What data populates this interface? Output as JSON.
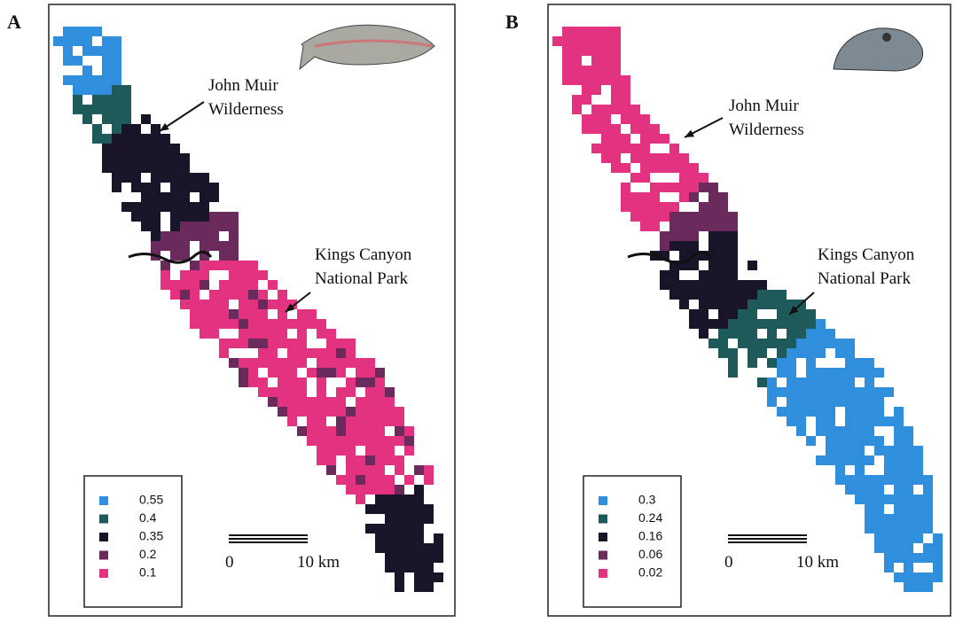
{
  "panels": [
    {
      "label": "A",
      "annotations": [
        {
          "lines": [
            "John Muir",
            "Wilderness"
          ]
        },
        {
          "lines": [
            "Kings Canyon",
            "National Park"
          ]
        }
      ],
      "legend": [
        {
          "label": "0.55",
          "color": "#2f8fdc"
        },
        {
          "label": "0.4",
          "color": "#1f5a5a"
        },
        {
          "label": "0.35",
          "color": "#1a1428"
        },
        {
          "label": "0.2",
          "color": "#6a2a5c"
        },
        {
          "label": "0.1",
          "color": "#e3327f"
        }
      ],
      "scale": {
        "start": "0",
        "end": "10 km"
      }
    },
    {
      "label": "B",
      "annotations": [
        {
          "lines": [
            "John Muir",
            "Wilderness"
          ]
        },
        {
          "lines": [
            "Kings Canyon",
            "National Park"
          ]
        }
      ],
      "legend": [
        {
          "label": "0.3",
          "color": "#2f8fdc"
        },
        {
          "label": "0.24",
          "color": "#1f5a5a"
        },
        {
          "label": "0.16",
          "color": "#1a1428"
        },
        {
          "label": "0.06",
          "color": "#6a2a5c"
        },
        {
          "label": "0.02",
          "color": "#e3327f"
        }
      ],
      "scale": {
        "start": "0",
        "end": "10 km"
      }
    }
  ]
}
